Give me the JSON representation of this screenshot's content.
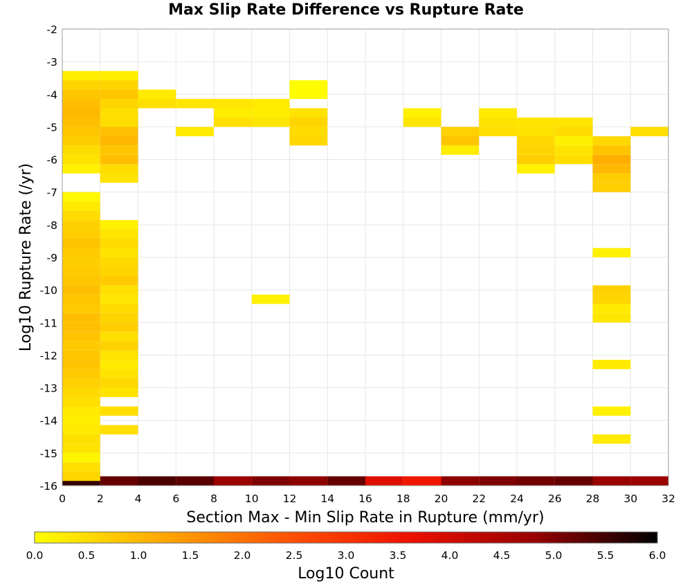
{
  "chart_data": {
    "type": "heatmap",
    "title": "Max Slip Rate Difference vs Rupture Rate",
    "xlabel": "Section Max - Min Slip Rate in Rupture (mm/yr)",
    "ylabel": "Log10 Rupture Rate (/yr)",
    "xlim": [
      0,
      32
    ],
    "ylim": [
      -16,
      -2
    ],
    "x_ticks": [
      "0",
      "2",
      "4",
      "6",
      "8",
      "10",
      "12",
      "14",
      "16",
      "18",
      "20",
      "22",
      "24",
      "26",
      "28",
      "30",
      "32"
    ],
    "y_ticks": [
      "-2",
      "-3",
      "-4",
      "-5",
      "-6",
      "-7",
      "-8",
      "-9",
      "-10",
      "-11",
      "-12",
      "-13",
      "-14",
      "-15",
      "-16"
    ],
    "x_bin_width": 2,
    "y_bin_height": 0.2857,
    "grid": true,
    "colorbar": {
      "label": "Log10 Count",
      "range": [
        0,
        6
      ],
      "ticks": [
        "0.0",
        "0.5",
        "1.0",
        "1.5",
        "2.0",
        "2.5",
        "3.0",
        "3.5",
        "4.0",
        "4.5",
        "5.0",
        "5.5",
        "6.0"
      ],
      "colors": [
        "#ffff00",
        "#ffaa00",
        "#ff5500",
        "#ee1100",
        "#990000",
        "#000000"
      ]
    },
    "cells": [
      [
        0,
        -15.857,
        5.6
      ],
      [
        2,
        -15.857,
        5.2
      ],
      [
        4,
        -15.857,
        5.4
      ],
      [
        6,
        -15.857,
        5.3
      ],
      [
        8,
        -15.857,
        4.8
      ],
      [
        10,
        -15.857,
        5.0
      ],
      [
        12,
        -15.857,
        4.9
      ],
      [
        14,
        -15.857,
        5.2
      ],
      [
        16,
        -15.857,
        3.8
      ],
      [
        18,
        -15.857,
        3.5
      ],
      [
        20,
        -15.857,
        4.9
      ],
      [
        22,
        -15.857,
        5.0
      ],
      [
        24,
        -15.857,
        5.1
      ],
      [
        26,
        -15.857,
        5.2
      ],
      [
        28,
        -15.857,
        4.8
      ],
      [
        30,
        -15.857,
        4.8
      ],
      [
        0,
        -3.429,
        0.25
      ],
      [
        0,
        -3.714,
        0.6
      ],
      [
        0,
        -4.0,
        0.8
      ],
      [
        0,
        -4.286,
        0.9
      ],
      [
        0,
        -4.571,
        1.0
      ],
      [
        0,
        -4.857,
        0.9
      ],
      [
        0,
        -5.143,
        0.8
      ],
      [
        0,
        -5.429,
        0.7
      ],
      [
        0,
        -5.714,
        0.5
      ],
      [
        0,
        -6.0,
        0.4
      ],
      [
        0,
        -6.286,
        0.2
      ],
      [
        0,
        -7.143,
        0.1
      ],
      [
        0,
        -7.429,
        0.3
      ],
      [
        0,
        -7.714,
        0.5
      ],
      [
        0,
        -8.0,
        0.65
      ],
      [
        0,
        -8.286,
        0.7
      ],
      [
        0,
        -8.571,
        0.85
      ],
      [
        0,
        -8.857,
        0.75
      ],
      [
        0,
        -9.143,
        0.7
      ],
      [
        0,
        -9.429,
        0.75
      ],
      [
        0,
        -9.714,
        0.8
      ],
      [
        0,
        -10.0,
        0.9
      ],
      [
        0,
        -10.286,
        0.8
      ],
      [
        0,
        -10.571,
        0.75
      ],
      [
        0,
        -10.857,
        0.9
      ],
      [
        0,
        -11.143,
        0.9
      ],
      [
        0,
        -11.429,
        0.85
      ],
      [
        0,
        -11.714,
        0.75
      ],
      [
        0,
        -12.0,
        0.8
      ],
      [
        0,
        -12.286,
        0.85
      ],
      [
        0,
        -12.571,
        0.75
      ],
      [
        0,
        -12.857,
        0.65
      ],
      [
        0,
        -13.143,
        0.55
      ],
      [
        0,
        -13.429,
        0.45
      ],
      [
        0,
        -13.714,
        0.3
      ],
      [
        0,
        -14.0,
        0.25
      ],
      [
        0,
        -14.286,
        0.3
      ],
      [
        0,
        -14.571,
        0.45
      ],
      [
        0,
        -14.857,
        0.4
      ],
      [
        0,
        -15.143,
        0.15
      ],
      [
        0,
        -15.429,
        0.45
      ],
      [
        0,
        -15.714,
        0.6
      ],
      [
        2,
        -3.429,
        0.25
      ],
      [
        2,
        -3.714,
        0.6
      ],
      [
        2,
        -4.0,
        0.8
      ],
      [
        2,
        -4.286,
        0.6
      ],
      [
        2,
        -4.571,
        0.45
      ],
      [
        2,
        -4.857,
        0.5
      ],
      [
        2,
        -5.143,
        0.9
      ],
      [
        2,
        -5.429,
        1.0
      ],
      [
        2,
        -5.714,
        0.8
      ],
      [
        2,
        -6.0,
        0.9
      ],
      [
        2,
        -6.286,
        0.5
      ],
      [
        2,
        -6.571,
        0.4
      ],
      [
        2,
        -8.0,
        0.2
      ],
      [
        2,
        -8.286,
        0.35
      ],
      [
        2,
        -8.571,
        0.5
      ],
      [
        2,
        -8.857,
        0.4
      ],
      [
        2,
        -9.143,
        0.55
      ],
      [
        2,
        -9.429,
        0.6
      ],
      [
        2,
        -9.714,
        0.75
      ],
      [
        2,
        -10.0,
        0.45
      ],
      [
        2,
        -10.286,
        0.35
      ],
      [
        2,
        -10.571,
        0.5
      ],
      [
        2,
        -10.857,
        0.6
      ],
      [
        2,
        -11.143,
        0.7
      ],
      [
        2,
        -11.429,
        0.45
      ],
      [
        2,
        -11.714,
        0.65
      ],
      [
        2,
        -12.0,
        0.4
      ],
      [
        2,
        -12.286,
        0.3
      ],
      [
        2,
        -12.571,
        0.4
      ],
      [
        2,
        -12.857,
        0.55
      ],
      [
        2,
        -13.143,
        0.4
      ],
      [
        2,
        -13.714,
        0.45
      ],
      [
        2,
        -14.286,
        0.45
      ],
      [
        4,
        -4.0,
        0.3
      ],
      [
        4,
        -4.286,
        0.45
      ],
      [
        6,
        -4.286,
        0.35
      ],
      [
        6,
        -5.143,
        0.3
      ],
      [
        8,
        -4.286,
        0.35
      ],
      [
        8,
        -4.571,
        0.25
      ],
      [
        8,
        -4.857,
        0.45
      ],
      [
        10,
        -4.286,
        0.3
      ],
      [
        10,
        -4.571,
        0.25
      ],
      [
        10,
        -4.857,
        0.35
      ],
      [
        10,
        -10.286,
        0.2
      ],
      [
        12,
        -3.714,
        0.05
      ],
      [
        12,
        -4.0,
        0.05
      ],
      [
        12,
        -4.571,
        0.4
      ],
      [
        12,
        -4.857,
        0.6
      ],
      [
        12,
        -5.143,
        0.5
      ],
      [
        12,
        -5.429,
        0.55
      ],
      [
        18,
        -4.571,
        0.2
      ],
      [
        18,
        -4.857,
        0.35
      ],
      [
        20,
        -5.143,
        0.65
      ],
      [
        20,
        -5.429,
        0.8
      ],
      [
        20,
        -5.714,
        0.25
      ],
      [
        22,
        -4.571,
        0.3
      ],
      [
        22,
        -4.857,
        0.4
      ],
      [
        22,
        -5.143,
        0.45
      ],
      [
        24,
        -4.857,
        0.35
      ],
      [
        24,
        -5.143,
        0.4
      ],
      [
        24,
        -5.429,
        0.55
      ],
      [
        24,
        -5.714,
        0.6
      ],
      [
        24,
        -6.0,
        0.7
      ],
      [
        24,
        -6.286,
        0.2
      ],
      [
        26,
        -4.857,
        0.35
      ],
      [
        26,
        -5.143,
        0.5
      ],
      [
        26,
        -5.429,
        0.2
      ],
      [
        26,
        -5.714,
        0.4
      ],
      [
        26,
        -6.0,
        0.45
      ],
      [
        28,
        -5.429,
        0.55
      ],
      [
        28,
        -5.714,
        0.85
      ],
      [
        28,
        -6.0,
        1.15
      ],
      [
        28,
        -6.286,
        1.0
      ],
      [
        28,
        -6.571,
        0.7
      ],
      [
        28,
        -6.857,
        0.7
      ],
      [
        28,
        -8.857,
        0.2
      ],
      [
        28,
        -10.0,
        0.65
      ],
      [
        28,
        -10.286,
        0.6
      ],
      [
        28,
        -10.571,
        0.3
      ],
      [
        28,
        -10.857,
        0.35
      ],
      [
        28,
        -12.286,
        0.3
      ],
      [
        28,
        -13.714,
        0.2
      ],
      [
        28,
        -14.571,
        0.3
      ],
      [
        30,
        -5.143,
        0.45
      ]
    ]
  }
}
